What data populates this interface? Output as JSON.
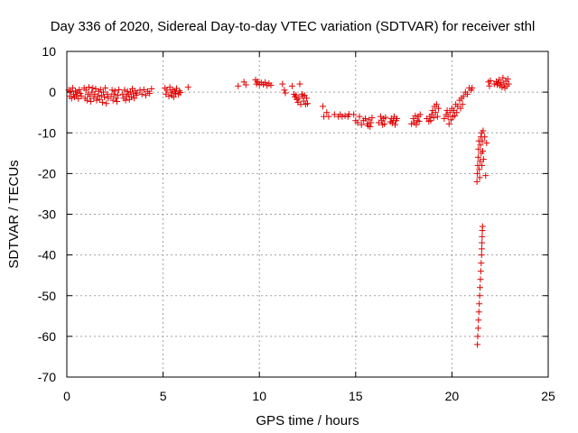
{
  "chart_data": {
    "type": "scatter",
    "title": "Day 336 of 2020, Sidereal Day-to-day VTEC variation (SDTVAR) for receiver sthl",
    "xlabel": "GPS time / hours",
    "ylabel": "SDTVAR / TECUs",
    "xlim": [
      0,
      25
    ],
    "ylim": [
      -70,
      10
    ],
    "xticks": [
      0,
      5,
      10,
      15,
      20,
      25
    ],
    "yticks": [
      10,
      0,
      -10,
      -20,
      -30,
      -40,
      -50,
      -60,
      -70
    ],
    "xtick_labels": [
      "0",
      "5",
      "10",
      "15",
      "20",
      "25"
    ],
    "ytick_labels": [
      "10",
      "0",
      "-10",
      "-20",
      "-30",
      "-40",
      "-50",
      "-60",
      "-70"
    ],
    "grid": true,
    "marker": "+",
    "color": "#e00000",
    "series": [
      {
        "name": "sthl",
        "points": [
          [
            0.1,
            0.5
          ],
          [
            0.15,
            -1
          ],
          [
            0.2,
            0.2
          ],
          [
            0.25,
            -1.5
          ],
          [
            0.3,
            1
          ],
          [
            0.35,
            -0.5
          ],
          [
            0.4,
            -1.2
          ],
          [
            0.45,
            0.3
          ],
          [
            0.5,
            -0.8
          ],
          [
            0.55,
            0
          ],
          [
            0.6,
            -1.6
          ],
          [
            0.65,
            0.6
          ],
          [
            0.7,
            -0.3
          ],
          [
            0.75,
            -1
          ],
          [
            0.9,
            1
          ],
          [
            0.95,
            -1.5
          ],
          [
            1.0,
            0.5
          ],
          [
            1.05,
            -2
          ],
          [
            1.1,
            -0.5
          ],
          [
            1.15,
            1.2
          ],
          [
            1.2,
            -1
          ],
          [
            1.25,
            -2.3
          ],
          [
            1.3,
            0
          ],
          [
            1.35,
            1
          ],
          [
            1.4,
            -1.5
          ],
          [
            1.45,
            -0.5
          ],
          [
            1.5,
            0.8
          ],
          [
            1.55,
            -2
          ],
          [
            1.6,
            -1
          ],
          [
            1.65,
            0.2
          ],
          [
            1.7,
            -1.8
          ],
          [
            1.75,
            0.6
          ],
          [
            1.8,
            -0.8
          ],
          [
            1.85,
            -2.5
          ],
          [
            1.9,
            0
          ],
          [
            1.95,
            -1.2
          ],
          [
            2.0,
            1
          ],
          [
            2.05,
            -2.8
          ],
          [
            2.1,
            -0.5
          ],
          [
            2.15,
            -1.5
          ],
          [
            2.3,
            -1
          ],
          [
            2.35,
            0.5
          ],
          [
            2.4,
            -2
          ],
          [
            2.45,
            -0.5
          ],
          [
            2.5,
            0.3
          ],
          [
            2.55,
            -1.5
          ],
          [
            2.6,
            -2.3
          ],
          [
            2.65,
            -0.8
          ],
          [
            2.7,
            0.6
          ],
          [
            2.9,
            -0.5
          ],
          [
            2.95,
            -1.5
          ],
          [
            3.0,
            0.5
          ],
          [
            3.05,
            -2
          ],
          [
            3.1,
            -1
          ],
          [
            3.15,
            0.2
          ],
          [
            3.2,
            -0.6
          ],
          [
            3.25,
            -1.8
          ],
          [
            3.3,
            0
          ],
          [
            3.35,
            -1.2
          ],
          [
            3.4,
            0.8
          ],
          [
            3.45,
            -0.4
          ],
          [
            3.5,
            -1.5
          ],
          [
            3.55,
            0.3
          ],
          [
            3.6,
            -0.8
          ],
          [
            3.65,
            -0.2
          ],
          [
            3.8,
            0.5
          ],
          [
            3.9,
            -0.5
          ],
          [
            4.0,
            0.6
          ],
          [
            4.1,
            -0.8
          ],
          [
            4.2,
            0.2
          ],
          [
            4.3,
            -0.3
          ],
          [
            4.4,
            0.8
          ],
          [
            5.1,
            1
          ],
          [
            5.15,
            -0.5
          ],
          [
            5.2,
            0.5
          ],
          [
            5.3,
            -1
          ],
          [
            5.35,
            1.2
          ],
          [
            5.4,
            0
          ],
          [
            5.45,
            -0.8
          ],
          [
            5.5,
            0.6
          ],
          [
            5.55,
            -1.2
          ],
          [
            5.6,
            0.2
          ],
          [
            5.65,
            -0.3
          ],
          [
            5.7,
            0.9
          ],
          [
            5.8,
            -0.6
          ],
          [
            5.85,
            0.3
          ],
          [
            5.9,
            -0.1
          ],
          [
            6.3,
            1.2
          ],
          [
            8.9,
            1.5
          ],
          [
            9.2,
            2.5
          ],
          [
            9.3,
            1.8
          ],
          [
            9.8,
            3
          ],
          [
            9.85,
            2
          ],
          [
            9.9,
            2.6
          ],
          [
            10.0,
            1.8
          ],
          [
            10.1,
            2.3
          ],
          [
            10.2,
            1.9
          ],
          [
            10.3,
            2.4
          ],
          [
            10.4,
            1.6
          ],
          [
            10.5,
            2.1
          ],
          [
            10.6,
            1.7
          ],
          [
            11.2,
            2
          ],
          [
            11.3,
            0.5
          ],
          [
            11.35,
            -0.2
          ],
          [
            11.7,
            1.5
          ],
          [
            11.8,
            -0.5
          ],
          [
            11.85,
            -1.2
          ],
          [
            11.9,
            -0.8
          ],
          [
            11.95,
            -1.8
          ],
          [
            12.0,
            -2.5
          ],
          [
            12.05,
            -1.5
          ],
          [
            12.1,
            2
          ],
          [
            12.15,
            -3
          ],
          [
            12.2,
            -0.5
          ],
          [
            12.25,
            -1
          ],
          [
            12.3,
            -2.2
          ],
          [
            12.35,
            -0.8
          ],
          [
            12.4,
            -3
          ],
          [
            12.45,
            -1.5
          ],
          [
            12.5,
            -2.8
          ],
          [
            13.3,
            -3.5
          ],
          [
            13.35,
            -6
          ],
          [
            13.5,
            -5
          ],
          [
            13.6,
            -6
          ],
          [
            13.9,
            -5.5
          ],
          [
            14.1,
            -6
          ],
          [
            14.2,
            -5.5
          ],
          [
            14.3,
            -6
          ],
          [
            14.45,
            -5.8
          ],
          [
            14.6,
            -6
          ],
          [
            14.65,
            -5.4
          ],
          [
            14.9,
            -5.5
          ],
          [
            15.0,
            -7
          ],
          [
            15.1,
            -7.5
          ],
          [
            15.2,
            -6
          ],
          [
            15.3,
            -8
          ],
          [
            15.4,
            -7
          ],
          [
            15.5,
            -6.5
          ],
          [
            15.6,
            -7.8
          ],
          [
            15.65,
            -8.3
          ],
          [
            15.7,
            -6.8
          ],
          [
            15.75,
            -8.5
          ],
          [
            15.8,
            -7.5
          ],
          [
            15.85,
            -6.3
          ],
          [
            16.2,
            -7.5
          ],
          [
            16.3,
            -6
          ],
          [
            16.35,
            -7
          ],
          [
            16.4,
            -8
          ],
          [
            16.45,
            -6.5
          ],
          [
            16.5,
            -7.8
          ],
          [
            16.55,
            -6.2
          ],
          [
            16.8,
            -7.3
          ],
          [
            16.85,
            -6.5
          ],
          [
            16.9,
            -7.6
          ],
          [
            16.95,
            -7
          ],
          [
            17.0,
            -6
          ],
          [
            17.05,
            -8
          ],
          [
            17.1,
            -7
          ],
          [
            17.15,
            -6.5
          ],
          [
            17.9,
            -7.8
          ],
          [
            18.0,
            -6.5
          ],
          [
            18.05,
            -7.5
          ],
          [
            18.1,
            -5.8
          ],
          [
            18.15,
            -8
          ],
          [
            18.2,
            -7
          ],
          [
            18.25,
            -6
          ],
          [
            18.3,
            -7.2
          ],
          [
            18.35,
            -5.5
          ],
          [
            18.7,
            -6.5
          ],
          [
            18.8,
            -7.2
          ],
          [
            18.85,
            -6
          ],
          [
            18.9,
            -7
          ],
          [
            18.95,
            -5.5
          ],
          [
            19.0,
            -4.5
          ],
          [
            19.05,
            -6.3
          ],
          [
            19.1,
            -3.5
          ],
          [
            19.15,
            -5
          ],
          [
            19.2,
            -3
          ],
          [
            19.25,
            -6
          ],
          [
            19.3,
            -4
          ],
          [
            19.6,
            -6.5
          ],
          [
            19.7,
            -5.5
          ],
          [
            19.75,
            -4.5
          ],
          [
            19.8,
            -6
          ],
          [
            19.85,
            -7.8
          ],
          [
            19.9,
            -5
          ],
          [
            19.95,
            -6.8
          ],
          [
            20.0,
            -4
          ],
          [
            20.05,
            -6
          ],
          [
            20.1,
            -4.5
          ],
          [
            20.15,
            -5.8
          ],
          [
            20.2,
            -3
          ],
          [
            20.25,
            -5
          ],
          [
            20.3,
            -3.5
          ],
          [
            20.4,
            -2
          ],
          [
            20.45,
            -4
          ],
          [
            20.5,
            -1.5
          ],
          [
            20.55,
            -3
          ],
          [
            20.6,
            -1
          ],
          [
            20.7,
            0
          ],
          [
            20.8,
            -0.5
          ],
          [
            20.9,
            1
          ],
          [
            21.0,
            0.5
          ],
          [
            21.05,
            1
          ],
          [
            21.3,
            -22
          ],
          [
            21.32,
            -20
          ],
          [
            21.34,
            -18
          ],
          [
            21.36,
            -16
          ],
          [
            21.38,
            -14
          ],
          [
            21.4,
            -12
          ],
          [
            21.42,
            -19
          ],
          [
            21.44,
            -21
          ],
          [
            21.46,
            -17
          ],
          [
            21.48,
            -13
          ],
          [
            21.5,
            -11
          ],
          [
            21.52,
            -15
          ],
          [
            21.54,
            -10
          ],
          [
            21.56,
            -18
          ],
          [
            21.58,
            -12
          ],
          [
            21.6,
            -14.5
          ],
          [
            21.62,
            -9.5
          ],
          [
            21.64,
            -16.5
          ],
          [
            21.32,
            -62
          ],
          [
            21.34,
            -60
          ],
          [
            21.36,
            -58
          ],
          [
            21.38,
            -56
          ],
          [
            21.4,
            -54
          ],
          [
            21.42,
            -52
          ],
          [
            21.44,
            -50
          ],
          [
            21.46,
            -48
          ],
          [
            21.48,
            -46
          ],
          [
            21.5,
            -44
          ],
          [
            21.52,
            -42
          ],
          [
            21.54,
            -40
          ],
          [
            21.55,
            -38.5
          ],
          [
            21.56,
            -37
          ],
          [
            21.57,
            -35.5
          ],
          [
            21.58,
            -34
          ],
          [
            21.59,
            -33
          ],
          [
            21.7,
            -11
          ],
          [
            21.75,
            -20.5
          ],
          [
            21.8,
            -12.5
          ],
          [
            21.9,
            2.5
          ],
          [
            21.95,
            1.5
          ],
          [
            22.0,
            2.8
          ],
          [
            22.2,
            2
          ],
          [
            22.3,
            2.6
          ],
          [
            22.35,
            1.8
          ],
          [
            22.4,
            2.2
          ],
          [
            22.45,
            3
          ],
          [
            22.5,
            1.6
          ],
          [
            22.55,
            2.4
          ],
          [
            22.6,
            1.2
          ],
          [
            22.65,
            3.5
          ],
          [
            22.7,
            2
          ],
          [
            22.75,
            1
          ],
          [
            22.8,
            2.7
          ],
          [
            22.85,
            1.5
          ],
          [
            22.9,
            3.2
          ],
          [
            22.95,
            2
          ]
        ]
      }
    ]
  }
}
